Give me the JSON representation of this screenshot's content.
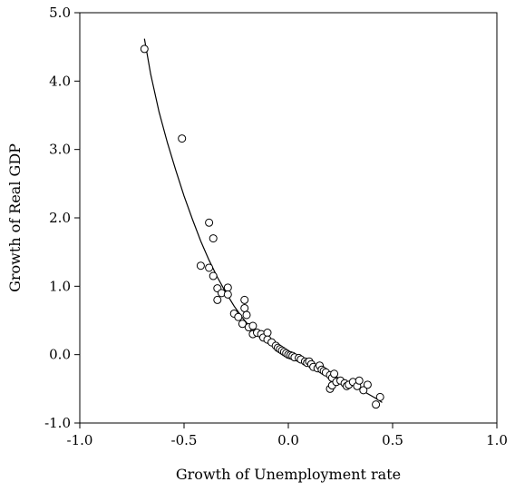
{
  "chart_data": {
    "type": "scatter",
    "title": "",
    "xlabel": "Growth of Unemployment rate",
    "ylabel": "Growth of Real GDP",
    "xlim": [
      -1.0,
      1.0
    ],
    "ylim": [
      -1.0,
      5.0
    ],
    "x_ticks": [
      "-1.0",
      "-0.5",
      "0.0",
      "0.5",
      "1.0"
    ],
    "y_ticks": [
      "-1.0",
      "0.0",
      "1.0",
      "2.0",
      "3.0",
      "4.0",
      "5.0"
    ],
    "grid": false,
    "legend": "none",
    "points": [
      [
        -0.69,
        4.47
      ],
      [
        -0.51,
        3.16
      ],
      [
        -0.38,
        1.93
      ],
      [
        -0.36,
        1.7
      ],
      [
        -0.42,
        1.3
      ],
      [
        -0.38,
        1.27
      ],
      [
        -0.36,
        1.15
      ],
      [
        -0.34,
        0.97
      ],
      [
        -0.32,
        0.9
      ],
      [
        -0.34,
        0.8
      ],
      [
        -0.29,
        0.98
      ],
      [
        -0.29,
        0.88
      ],
      [
        -0.26,
        0.6
      ],
      [
        -0.24,
        0.55
      ],
      [
        -0.21,
        0.8
      ],
      [
        -0.21,
        0.68
      ],
      [
        -0.2,
        0.58
      ],
      [
        -0.22,
        0.45
      ],
      [
        -0.19,
        0.4
      ],
      [
        -0.17,
        0.42
      ],
      [
        -0.17,
        0.3
      ],
      [
        -0.15,
        0.32
      ],
      [
        -0.13,
        0.3
      ],
      [
        -0.12,
        0.25
      ],
      [
        -0.1,
        0.32
      ],
      [
        -0.1,
        0.22
      ],
      [
        -0.08,
        0.18
      ],
      [
        -0.06,
        0.13
      ],
      [
        -0.05,
        0.1
      ],
      [
        -0.04,
        0.08
      ],
      [
        -0.03,
        0.06
      ],
      [
        -0.02,
        0.04
      ],
      [
        -0.01,
        0.02
      ],
      [
        0.0,
        0.0
      ],
      [
        0.01,
        -0.01
      ],
      [
        0.02,
        -0.02
      ],
      [
        0.03,
        -0.04
      ],
      [
        0.05,
        -0.05
      ],
      [
        0.06,
        -0.07
      ],
      [
        0.08,
        -0.1
      ],
      [
        0.09,
        -0.12
      ],
      [
        0.1,
        -0.1
      ],
      [
        0.11,
        -0.14
      ],
      [
        0.12,
        -0.18
      ],
      [
        0.14,
        -0.2
      ],
      [
        0.15,
        -0.16
      ],
      [
        0.16,
        -0.22
      ],
      [
        0.17,
        -0.24
      ],
      [
        0.18,
        -0.26
      ],
      [
        0.2,
        -0.3
      ],
      [
        0.21,
        -0.34
      ],
      [
        0.22,
        -0.28
      ],
      [
        0.2,
        -0.5
      ],
      [
        0.21,
        -0.45
      ],
      [
        0.23,
        -0.4
      ],
      [
        0.25,
        -0.38
      ],
      [
        0.27,
        -0.42
      ],
      [
        0.28,
        -0.46
      ],
      [
        0.29,
        -0.44
      ],
      [
        0.31,
        -0.4
      ],
      [
        0.33,
        -0.46
      ],
      [
        0.34,
        -0.38
      ],
      [
        0.36,
        -0.52
      ],
      [
        0.38,
        -0.44
      ],
      [
        0.42,
        -0.73
      ],
      [
        0.44,
        -0.62
      ]
    ],
    "fit_line": [
      [
        -0.69,
        4.62
      ],
      [
        -0.66,
        4.1
      ],
      [
        -0.62,
        3.55
      ],
      [
        -0.58,
        3.1
      ],
      [
        -0.54,
        2.7
      ],
      [
        -0.5,
        2.32
      ],
      [
        -0.46,
        1.98
      ],
      [
        -0.42,
        1.66
      ],
      [
        -0.38,
        1.38
      ],
      [
        -0.34,
        1.13
      ],
      [
        -0.3,
        0.91
      ],
      [
        -0.26,
        0.71
      ],
      [
        -0.22,
        0.54
      ],
      [
        -0.18,
        0.39
      ],
      [
        -0.14,
        0.27
      ],
      [
        -0.1,
        0.17
      ],
      [
        -0.06,
        0.09
      ],
      [
        -0.02,
        0.02
      ],
      [
        0.02,
        -0.04
      ],
      [
        0.06,
        -0.09
      ],
      [
        0.1,
        -0.15
      ],
      [
        0.14,
        -0.2
      ],
      [
        0.18,
        -0.26
      ],
      [
        0.22,
        -0.31
      ],
      [
        0.26,
        -0.37
      ],
      [
        0.3,
        -0.43
      ],
      [
        0.34,
        -0.5
      ],
      [
        0.38,
        -0.57
      ],
      [
        0.42,
        -0.64
      ],
      [
        0.45,
        -0.7
      ]
    ]
  }
}
